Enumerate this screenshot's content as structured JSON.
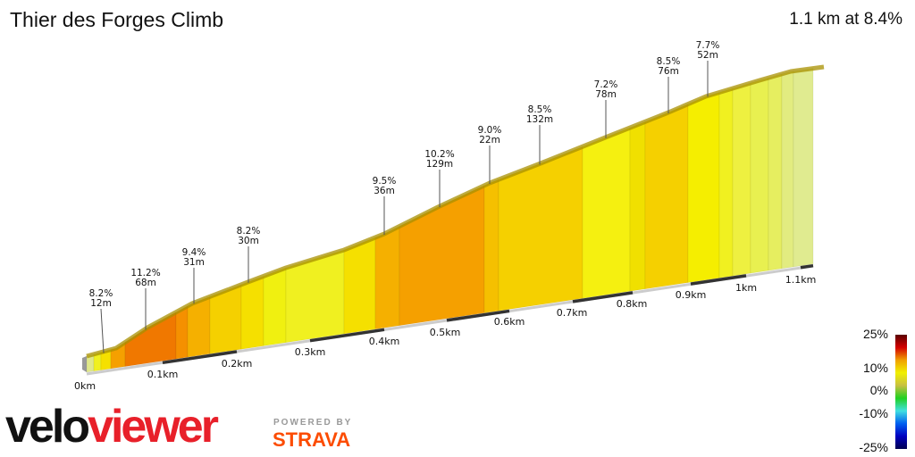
{
  "header": {
    "title": "Thier des Forges Climb",
    "summary": "1.1 km at 8.4%"
  },
  "chart_data": {
    "type": "area",
    "title": "Thier des Forges Climb",
    "x_ticks": [
      "0km",
      "0.1km",
      "0.2km",
      "0.3km",
      "0.4km",
      "0.5km",
      "0.6km",
      "0.7km",
      "0.8km",
      "0.9km",
      "1km",
      "1.1km"
    ],
    "annotations": [
      {
        "grade": "8.2%",
        "length": "12m"
      },
      {
        "grade": "11.2%",
        "length": "68m"
      },
      {
        "grade": "9.4%",
        "length": "31m"
      },
      {
        "grade": "8.2%",
        "length": "30m"
      },
      {
        "grade": "9.5%",
        "length": "36m"
      },
      {
        "grade": "10.2%",
        "length": "129m"
      },
      {
        "grade": "9.0%",
        "length": "22m"
      },
      {
        "grade": "8.5%",
        "length": "132m"
      },
      {
        "grade": "7.2%",
        "length": "78m"
      },
      {
        "grade": "8.5%",
        "length": "76m"
      },
      {
        "grade": "7.7%",
        "length": "52m"
      }
    ],
    "segment_colors": [
      "#e0e88a",
      "#f0f020",
      "#f5e000",
      "#f5a000",
      "#f07800",
      "#f59000",
      "#f5b000",
      "#f5d000",
      "#f5e000",
      "#f0f010",
      "#f0f020",
      "#f5e000",
      "#f5b000",
      "#f5a000",
      "#f5c000",
      "#f5d000",
      "#f5f010",
      "#f0e000",
      "#f5d000",
      "#f5ee00",
      "#f0f020",
      "#eef040",
      "#e8f050",
      "#e6ee60",
      "#e2ec80",
      "#e0eb90"
    ],
    "legend": {
      "labels": [
        "25%",
        "10%",
        "0%",
        "-10%",
        "-25%"
      ],
      "colors": [
        "#5a0000",
        "#d40000",
        "#f0a000",
        "#f0f000",
        "#c8c040",
        "#20d020",
        "#40e0e0",
        "#0060f0",
        "#0000c0",
        "#000050"
      ]
    }
  },
  "branding": {
    "logo": "veloviewer",
    "powered_by": "POWERED BY",
    "strava": "STRAVA"
  }
}
